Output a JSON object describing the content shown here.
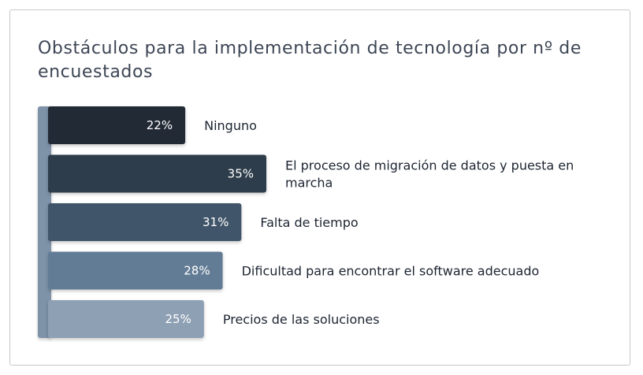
{
  "chart_data": {
    "type": "bar",
    "orientation": "horizontal",
    "title": "Obstáculos para la implementación de tecnología por nº de encuestados",
    "categories": [
      "Ninguno",
      "El proceso de migración de datos y puesta en marcha",
      "Falta de tiempo",
      "Dificultad para encontrar el software adecuado",
      "Precios de las soluciones"
    ],
    "category_lines": [
      [
        "Ninguno"
      ],
      [
        "El proceso de migración de datos y puesta en",
        "marcha"
      ],
      [
        "Falta de tiempo"
      ],
      [
        "Dificultad para encontrar el software adecuado"
      ],
      [
        "Precios de las soluciones"
      ]
    ],
    "values": [
      22,
      35,
      31,
      28,
      25
    ],
    "value_labels": [
      "22%",
      "35%",
      "31%",
      "28%",
      "25%"
    ],
    "unit": "%",
    "colors": [
      "#232b35",
      "#2f3c4c",
      "#415469",
      "#647c96",
      "#8ea0b4"
    ],
    "axis_color": "#7e92a8",
    "grid": false,
    "legend": "none"
  }
}
